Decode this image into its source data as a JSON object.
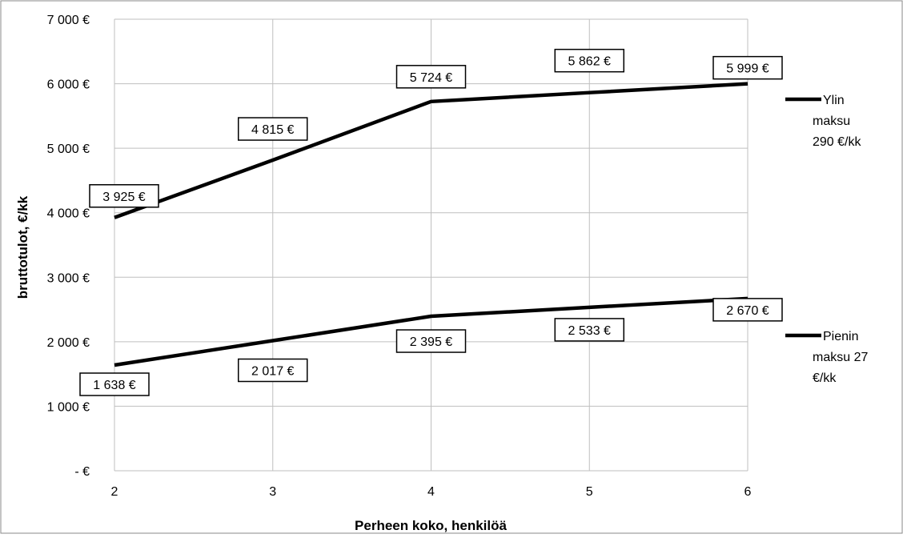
{
  "chart_data": {
    "type": "line",
    "x": [
      2,
      3,
      4,
      5,
      6
    ],
    "xticks": [
      "2",
      "3",
      "4",
      "5",
      "6"
    ],
    "xlabel": "Perheen koko, henkilöä",
    "ylabel": "bruttotulot, €/kk",
    "ylim": [
      0,
      7000
    ],
    "yticks": [
      "-  €",
      "1 000 €",
      "2 000 €",
      "3 000 €",
      "4 000 €",
      "5 000 €",
      "6 000 €",
      "7 000 €"
    ],
    "grid": true,
    "legend_position": "right",
    "series": [
      {
        "name": "Ylin maksu 290 €/kk",
        "name_lines": [
          "Ylin",
          "maksu",
          "290 €/kk"
        ],
        "values": [
          3925,
          4815,
          5724,
          5862,
          5999
        ],
        "labels": [
          "3 925 €",
          "4 815 €",
          "5 724 €",
          "5 862 €",
          "5 999 €"
        ]
      },
      {
        "name": "Pienin maksu 27 €/kk",
        "name_lines": [
          "Pienin",
          "maksu 27",
          "€/kk"
        ],
        "values": [
          1638,
          2017,
          2395,
          2533,
          2670
        ],
        "labels": [
          "1 638 €",
          "2 017 €",
          "2 395 €",
          "2 533 €",
          "2 670 €"
        ]
      }
    ],
    "colors": {
      "line": "#000000",
      "grid": "#bfbfbf",
      "text": "#000000",
      "frame": "#888888"
    }
  }
}
